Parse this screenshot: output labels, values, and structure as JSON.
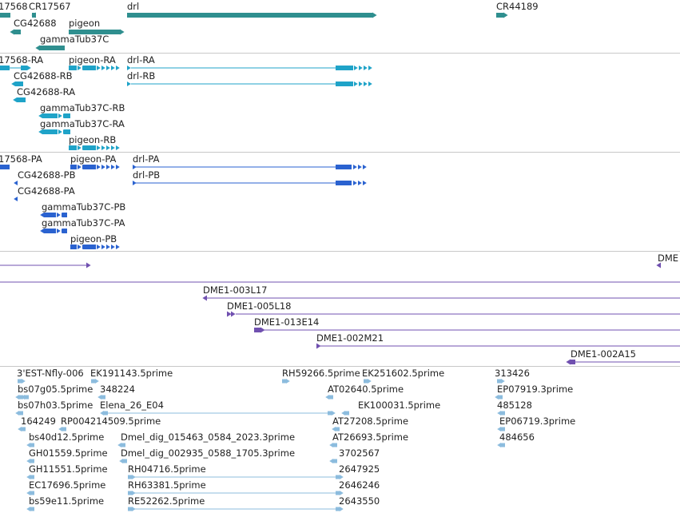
{
  "colors": {
    "gene": "#2f8f8f",
    "transcript": "#1fa3c8",
    "protein": "#2a62d0",
    "clone": "#7050b0",
    "est": "#8cbcde",
    "separator": "#c8c8c8"
  },
  "tracks": {
    "genes": {
      "labels": [
        {
          "id": "g1",
          "text": "17568"
        },
        {
          "id": "g2",
          "text": "CR17567"
        },
        {
          "id": "g3",
          "text": "drl"
        },
        {
          "id": "g4",
          "text": "CR44189"
        },
        {
          "id": "g5",
          "text": "CG42688"
        },
        {
          "id": "g6",
          "text": "pigeon"
        },
        {
          "id": "g7",
          "text": "gammaTub37C"
        }
      ]
    },
    "transcripts": {
      "labels": [
        {
          "id": "t1",
          "text": "17568-RA"
        },
        {
          "id": "t2",
          "text": "pigeon-RA"
        },
        {
          "id": "t3",
          "text": "drl-RA"
        },
        {
          "id": "t4",
          "text": "CG42688-RB"
        },
        {
          "id": "t5",
          "text": "drl-RB"
        },
        {
          "id": "t6",
          "text": "CG42688-RA"
        },
        {
          "id": "t7",
          "text": "gammaTub37C-RB"
        },
        {
          "id": "t8",
          "text": "gammaTub37C-RA"
        },
        {
          "id": "t9",
          "text": "pigeon-RB"
        }
      ]
    },
    "proteins": {
      "labels": [
        {
          "id": "p1",
          "text": "17568-PA"
        },
        {
          "id": "p2",
          "text": "pigeon-PA"
        },
        {
          "id": "p3",
          "text": "drl-PA"
        },
        {
          "id": "p4",
          "text": "CG42688-PB"
        },
        {
          "id": "p5",
          "text": "drl-PB"
        },
        {
          "id": "p6",
          "text": "CG42688-PA"
        },
        {
          "id": "p7",
          "text": "gammaTub37C-PB"
        },
        {
          "id": "p8",
          "text": "gammaTub37C-PA"
        },
        {
          "id": "p9",
          "text": "pigeon-PB"
        }
      ]
    },
    "clones": {
      "labels": [
        {
          "id": "c1",
          "text": "DME"
        },
        {
          "id": "c2",
          "text": "DME1-003L17"
        },
        {
          "id": "c3",
          "text": "DME1-005L18"
        },
        {
          "id": "c4",
          "text": "DME1-013E14"
        },
        {
          "id": "c5",
          "text": "DME1-002M21"
        },
        {
          "id": "c6",
          "text": "DME1-002A15"
        }
      ]
    },
    "ests": {
      "labels": [
        {
          "id": "e1",
          "text": "3'EST-Nfly-006"
        },
        {
          "id": "e2",
          "text": "EK191143.5prime"
        },
        {
          "id": "e3",
          "text": "RH59266.5prime"
        },
        {
          "id": "e4",
          "text": "EK251602.5prime"
        },
        {
          "id": "e5",
          "text": "313426"
        },
        {
          "id": "e6",
          "text": "bs07g05.5prime"
        },
        {
          "id": "e7",
          "text": "348224"
        },
        {
          "id": "e8",
          "text": "AT02640.5prime"
        },
        {
          "id": "e9",
          "text": "EP07919.3prime"
        },
        {
          "id": "e10",
          "text": "bs07h03.5prime"
        },
        {
          "id": "e11",
          "text": "Elena_26_E04"
        },
        {
          "id": "e12",
          "text": "EK100031.5prime"
        },
        {
          "id": "e13",
          "text": "485128"
        },
        {
          "id": "e14",
          "text": "164249"
        },
        {
          "id": "e15",
          "text": "RP004214509.5prime"
        },
        {
          "id": "e16",
          "text": "AT27208.5prime"
        },
        {
          "id": "e17",
          "text": "EP06719.3prime"
        },
        {
          "id": "e18",
          "text": "bs40d12.5prime"
        },
        {
          "id": "e19",
          "text": "Dmel_dig_015463_0584_2023.3prime"
        },
        {
          "id": "e20",
          "text": "AT26693.5prime"
        },
        {
          "id": "e21",
          "text": "484656"
        },
        {
          "id": "e22",
          "text": "GH01559.5prime"
        },
        {
          "id": "e23",
          "text": "Dmel_dig_002935_0588_1705.3prime"
        },
        {
          "id": "e24",
          "text": "3702567"
        },
        {
          "id": "e25",
          "text": "GH11551.5prime"
        },
        {
          "id": "e26",
          "text": "RH04716.5prime"
        },
        {
          "id": "e27",
          "text": "2647925"
        },
        {
          "id": "e28",
          "text": "EC17696.5prime"
        },
        {
          "id": "e29",
          "text": "RH63381.5prime"
        },
        {
          "id": "e30",
          "text": "2646246"
        },
        {
          "id": "e31",
          "text": "bs59e11.5prime"
        },
        {
          "id": "e32",
          "text": "RE52262.5prime"
        },
        {
          "id": "e33",
          "text": "2643550"
        }
      ]
    }
  }
}
